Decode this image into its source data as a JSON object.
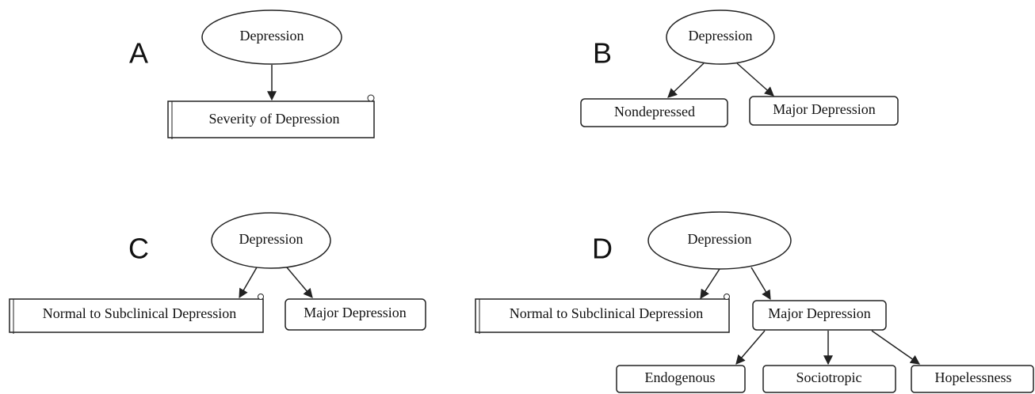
{
  "panels": [
    {
      "label": "A",
      "nodes": [
        "Depression",
        "Severity of Depression"
      ]
    },
    {
      "label": "B",
      "nodes": [
        "Depression",
        "Nondepressed",
        "Major Depression"
      ]
    },
    {
      "label": "C",
      "nodes": [
        "Depression",
        "Normal to Subclinical Depression",
        "Major Depression"
      ]
    },
    {
      "label": "D",
      "nodes": [
        "Depression",
        "Normal to Subclinical Depression",
        "Major Depression",
        "Endogenous",
        "Sociotropic",
        "Hopelessness"
      ]
    }
  ]
}
